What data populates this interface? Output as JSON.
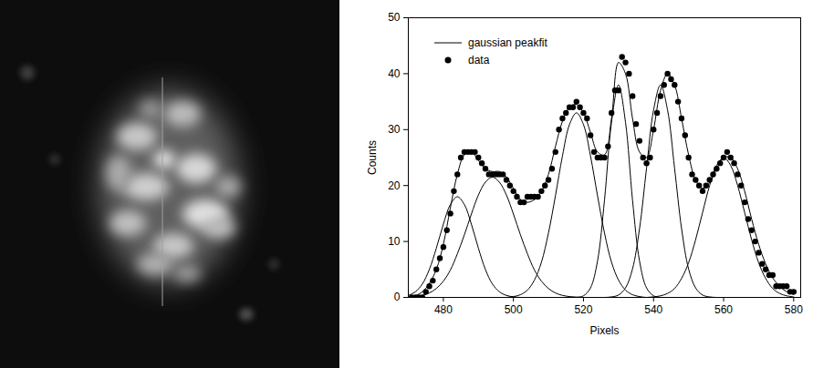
{
  "chart_data": {
    "type": "scatter",
    "x_label": "Pixels",
    "y_label": "Counts",
    "xlim": [
      470,
      582
    ],
    "ylim": [
      0,
      50
    ],
    "xticks": [
      480,
      500,
      520,
      540,
      560,
      580
    ],
    "yticks": [
      0,
      10,
      20,
      30,
      40,
      50
    ],
    "grid": false,
    "legend": "upper left",
    "series": [
      {
        "name": "gaussian peakfit",
        "type": "line",
        "color": "#000000",
        "line_style": "solid",
        "x": [
          470,
          472,
          474,
          476,
          478,
          480,
          482,
          484,
          486,
          488,
          490,
          492,
          494,
          496,
          498,
          500,
          502,
          504,
          506,
          508,
          510,
          512,
          514,
          516,
          518,
          520,
          522,
          524,
          526,
          528,
          530,
          532,
          534,
          536,
          538,
          540,
          542,
          544,
          546,
          548,
          550,
          552,
          554,
          556,
          558,
          560,
          562,
          564,
          566,
          568,
          570,
          572,
          574,
          576,
          578,
          580
        ],
        "values": [
          0,
          0.3,
          1,
          2.5,
          5,
          9.5,
          16,
          22,
          25.5,
          26,
          24.5,
          23,
          22.5,
          22.5,
          21.5,
          19.5,
          17.5,
          17,
          17.5,
          19,
          22,
          27,
          31.5,
          34,
          34.5,
          33,
          29.5,
          26,
          25.5,
          32,
          42,
          40,
          32,
          26,
          25,
          30,
          37,
          40,
          38,
          32,
          25.5,
          21,
          19.5,
          20.5,
          23,
          25,
          25,
          23,
          19,
          14,
          9.5,
          6,
          3.5,
          2,
          1,
          0.5
        ],
        "components": [
          [
            0.36,
            1,
            2.4,
            5,
            8.8,
            13.1,
            16.6,
            18,
            16.6,
            13.1,
            8.8,
            5,
            2.4,
            1,
            0.36,
            0.1,
            0,
            0,
            0,
            0,
            0,
            0,
            0,
            0,
            0,
            0,
            0,
            0,
            0,
            0,
            0,
            0,
            0,
            0,
            0,
            0,
            0,
            0,
            0,
            0,
            0,
            0,
            0,
            0,
            0,
            0,
            0,
            0,
            0,
            0,
            0,
            0,
            0,
            0,
            0,
            0
          ],
          [
            0.06,
            0.15,
            0.36,
            0.79,
            1.6,
            2.9,
            4.9,
            7.8,
            11.2,
            14.9,
            18.3,
            20.6,
            21.5,
            20.6,
            18.3,
            14.9,
            11.2,
            7.8,
            4.9,
            2.9,
            1.6,
            0.79,
            0.36,
            0.15,
            0.06,
            0,
            0,
            0,
            0,
            0,
            0,
            0,
            0,
            0,
            0,
            0,
            0,
            0,
            0,
            0,
            0,
            0,
            0,
            0,
            0,
            0,
            0,
            0,
            0,
            0,
            0,
            0,
            0,
            0,
            0,
            0
          ],
          [
            0,
            0,
            0,
            0,
            0,
            0,
            0,
            0,
            0,
            0,
            0,
            0,
            0,
            0,
            0,
            0.15,
            0.48,
            1.3,
            3.1,
            6.3,
            11.5,
            18.2,
            25.3,
            30.9,
            33,
            30.9,
            25.3,
            18.2,
            11.5,
            6.3,
            3.1,
            1.3,
            0.48,
            0.15,
            0,
            0,
            0,
            0,
            0,
            0,
            0,
            0,
            0,
            0,
            0,
            0,
            0,
            0,
            0,
            0,
            0,
            0,
            0,
            0,
            0,
            0
          ],
          [
            0,
            0,
            0,
            0,
            0,
            0,
            0,
            0,
            0,
            0,
            0,
            0,
            0,
            0,
            0,
            0,
            0,
            0,
            0,
            0,
            0,
            0,
            0,
            0,
            0,
            0.29,
            1.7,
            6.5,
            17.4,
            31.3,
            38,
            31.3,
            17.4,
            6.5,
            1.7,
            0.29,
            0,
            0,
            0,
            0,
            0,
            0,
            0,
            0,
            0,
            0,
            0,
            0,
            0,
            0,
            0,
            0,
            0,
            0,
            0,
            0
          ],
          [
            0,
            0,
            0,
            0,
            0,
            0,
            0,
            0,
            0,
            0,
            0,
            0,
            0,
            0,
            0,
            0,
            0,
            0,
            0,
            0,
            0,
            0,
            0,
            0,
            0,
            0,
            0,
            0,
            0,
            0.09,
            0.42,
            1.7,
            5.1,
            12.3,
            23.1,
            33.5,
            38,
            33.5,
            23.1,
            12.3,
            5.1,
            1.7,
            0.42,
            0.09,
            0,
            0,
            0,
            0,
            0,
            0,
            0,
            0,
            0,
            0,
            0,
            0
          ],
          [
            0,
            0,
            0,
            0,
            0,
            0,
            0,
            0,
            0,
            0,
            0,
            0,
            0,
            0,
            0,
            0,
            0,
            0,
            0,
            0,
            0,
            0,
            0,
            0,
            0,
            0,
            0,
            0,
            0,
            0,
            0,
            0,
            0,
            0,
            0,
            0.1,
            0.28,
            0.71,
            1.6,
            3.4,
            6.2,
            10.3,
            15.2,
            20,
            23.6,
            25,
            23.6,
            20,
            15.2,
            10.3,
            6.2,
            3.4,
            1.6,
            0.71,
            0.28,
            0.1
          ]
        ]
      },
      {
        "name": "data",
        "type": "scatter",
        "color": "#000000",
        "marker": "circle",
        "x": [
          471,
          472,
          473,
          474,
          475,
          476,
          477,
          478,
          479,
          480,
          481,
          482,
          483,
          484,
          485,
          486,
          487,
          488,
          489,
          490,
          491,
          492,
          493,
          494,
          495,
          496,
          497,
          498,
          499,
          500,
          501,
          502,
          503,
          504,
          505,
          506,
          507,
          508,
          509,
          510,
          511,
          512,
          513,
          514,
          515,
          516,
          517,
          518,
          519,
          520,
          521,
          522,
          523,
          524,
          525,
          526,
          527,
          528,
          529,
          530,
          531,
          532,
          533,
          534,
          535,
          536,
          537,
          538,
          539,
          540,
          541,
          542,
          543,
          544,
          545,
          546,
          547,
          548,
          549,
          550,
          551,
          552,
          553,
          554,
          555,
          556,
          557,
          558,
          559,
          560,
          561,
          562,
          563,
          564,
          565,
          566,
          567,
          568,
          569,
          570,
          571,
          572,
          573,
          574,
          575,
          576,
          577,
          578,
          579,
          580
        ],
        "values": [
          0,
          0,
          0,
          0,
          1,
          2,
          3,
          5,
          7,
          9,
          12,
          15,
          19,
          22,
          25,
          26,
          26,
          26,
          26,
          25,
          24,
          23,
          22,
          22,
          22,
          22,
          22,
          21,
          20,
          19,
          18,
          17,
          17,
          18,
          18,
          18,
          18,
          19,
          20,
          21,
          23,
          26,
          30,
          32,
          33,
          34,
          34,
          35,
          34,
          33,
          32,
          29,
          26,
          25,
          25,
          25,
          27,
          33,
          37,
          37,
          43,
          42,
          40,
          36,
          31,
          28,
          25,
          24,
          25,
          30,
          33,
          36,
          38,
          40,
          39,
          38,
          35,
          32,
          29,
          25,
          22,
          21,
          20,
          19,
          20,
          21,
          22,
          23,
          24,
          25,
          26,
          25,
          24,
          22,
          20,
          17,
          14,
          12,
          10,
          8,
          6,
          5,
          4,
          4,
          2,
          2,
          2,
          2,
          1,
          1
        ]
      }
    ]
  }
}
